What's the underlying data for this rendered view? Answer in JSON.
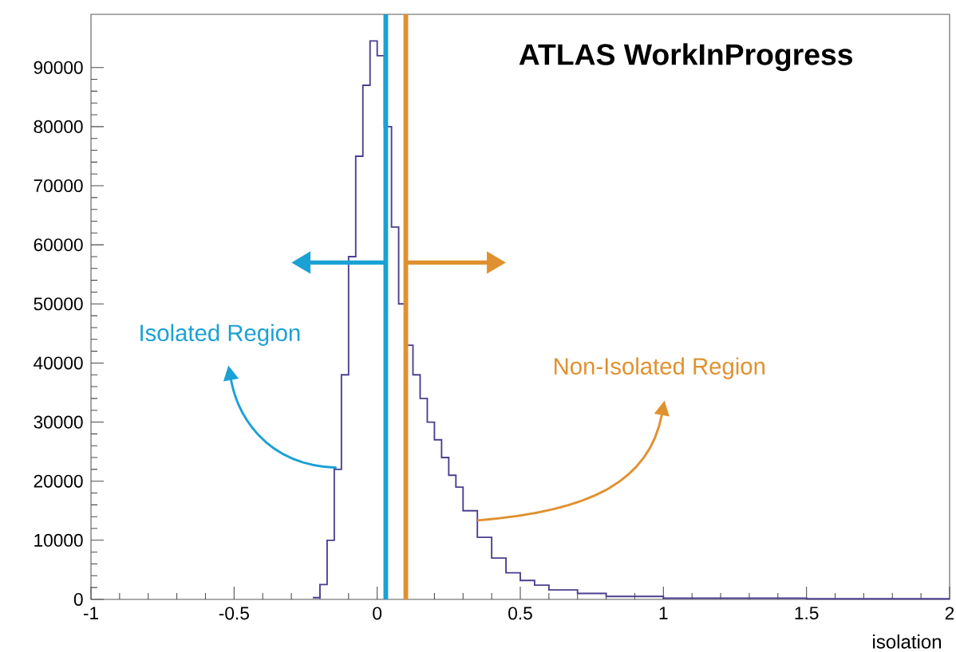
{
  "chart_data": {
    "type": "histogram",
    "title": "ATLAS WorkInProgress",
    "xlabel": "isolation",
    "bins": [
      -0.225,
      -0.2,
      -0.175,
      -0.15,
      -0.125,
      -0.1,
      -0.075,
      -0.05,
      -0.025,
      0,
      0.025,
      0.05,
      0.075,
      0.1,
      0.125,
      0.15,
      0.175,
      0.2,
      0.225,
      0.25,
      0.275,
      0.3,
      0.35,
      0.4,
      0.45,
      0.5,
      0.55,
      0.6,
      0.7,
      0.8,
      1.0,
      1.5,
      2.0
    ],
    "values": [
      300,
      2500,
      10000,
      22000,
      38000,
      58000,
      75000,
      87000,
      94500,
      92000,
      80000,
      63000,
      50000,
      43000,
      38000,
      34000,
      30000,
      27000,
      24000,
      21000,
      19000,
      15000,
      10500,
      7000,
      4500,
      3200,
      2400,
      1600,
      1000,
      500,
      200,
      100
    ],
    "color": "#4a3f8f",
    "xlim": [
      -1,
      2
    ],
    "xticks": [
      -1,
      -0.5,
      0,
      0.5,
      1,
      1.5,
      2
    ],
    "ylim": [
      0,
      99000
    ],
    "yticks": [
      0,
      10000,
      20000,
      30000,
      40000,
      50000,
      60000,
      70000,
      80000,
      90000
    ],
    "grid": false,
    "ref_lines": [
      {
        "axis": "x",
        "value": 0.03,
        "color": "#1ba1d4"
      },
      {
        "axis": "x",
        "value": 0.1,
        "color": "#e0912f"
      }
    ],
    "annotations": [
      "Isolated Region",
      "Non-Isolated Region"
    ]
  }
}
